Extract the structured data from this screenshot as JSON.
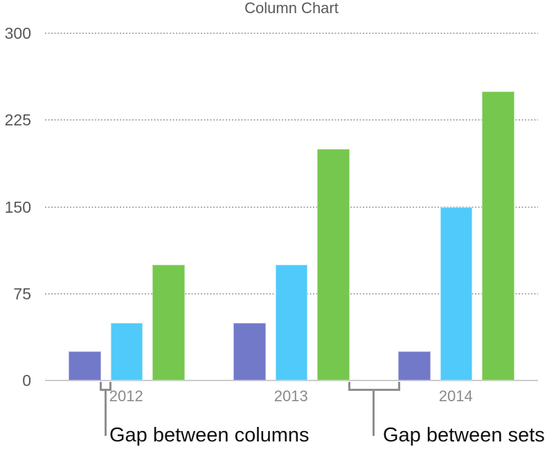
{
  "chart_data": {
    "type": "bar",
    "title": "Column Chart",
    "categories": [
      "2012",
      "2013",
      "2014"
    ],
    "series": [
      {
        "name": "purple",
        "color": "#7379c9",
        "values": [
          25,
          50,
          25
        ]
      },
      {
        "name": "blue",
        "color": "#4fcafa",
        "values": [
          50,
          100,
          150
        ]
      },
      {
        "name": "green",
        "color": "#76c74e",
        "values": [
          100,
          200,
          250
        ]
      }
    ],
    "y_axis": {
      "ticks": [
        0,
        75,
        150,
        225,
        300
      ],
      "min": 0,
      "max": 300,
      "gridlines": "dotted"
    },
    "legend": "none",
    "annotations": [
      {
        "text": "Gap between columns",
        "target": "gap between columns within the 2012 set"
      },
      {
        "text": "Gap between sets",
        "target": "gap between the 2013 and 2014 sets"
      }
    ]
  }
}
